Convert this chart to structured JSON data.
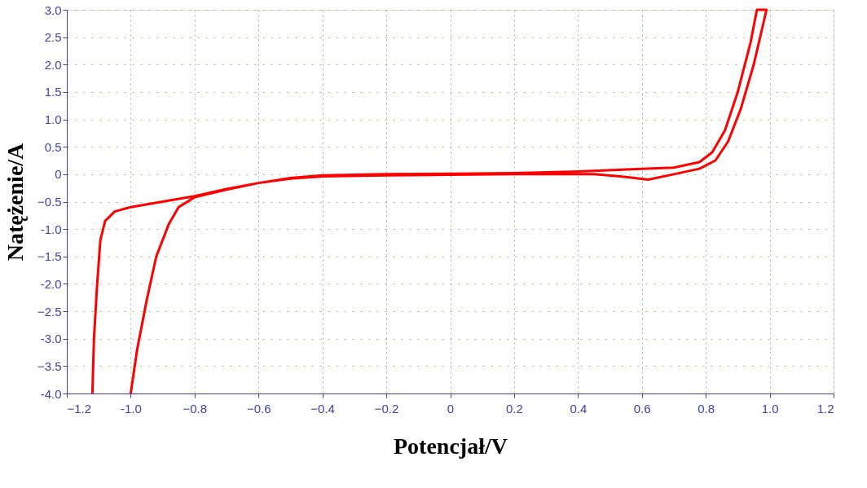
{
  "chart_data": {
    "type": "line",
    "xlabel": "Potencjał/V",
    "ylabel": "Natężenie/A",
    "xlim": [
      -1.2,
      1.2
    ],
    "ylim": [
      -4.0,
      3.0
    ],
    "xticks": [
      -1.2,
      {
        "value": -1,
        "label": "-1.0"
      },
      -0.8,
      -0.6,
      -0.4,
      -0.2,
      0,
      0.2,
      0.4,
      0.6,
      0.8,
      {
        "value": 1,
        "label": "1.0"
      },
      1.2
    ],
    "yticks": [
      {
        "value": -4,
        "label": "-4.0"
      },
      -3.5,
      {
        "value": -3,
        "label": "-3.0"
      },
      -2.5,
      {
        "value": -2,
        "label": "-2.0"
      },
      -1.5,
      {
        "value": -1,
        "label": "-1.0"
      },
      -0.5,
      0,
      0.5,
      {
        "value": 1,
        "label": "1.0"
      },
      1.5,
      {
        "value": 2,
        "label": "2.0"
      },
      2.5,
      {
        "value": 3,
        "label": "3.0"
      }
    ],
    "grid": true,
    "legend": false,
    "marker": "none",
    "line_style": "solid",
    "series": [
      {
        "color": "#ff0000",
        "x": [
          -1.12,
          -1.115,
          -1.105,
          -1.095,
          -1.08,
          -1.05,
          -1.0,
          -0.9,
          -0.8,
          -0.7,
          -0.6,
          -0.5,
          -0.4,
          -0.2,
          0,
          0.2,
          0.4,
          0.6,
          0.7,
          0.78,
          0.82,
          0.86,
          0.9,
          0.94,
          0.96,
          0.99,
          0.95,
          0.91,
          0.87,
          0.83,
          0.78,
          0.7,
          0.62,
          0.55,
          0.45,
          0.2,
          0,
          -0.2,
          -0.4,
          -0.5,
          -0.6,
          -0.7,
          -0.8,
          -0.85,
          -0.88,
          -0.92,
          -0.95,
          -0.98,
          -1.0
        ],
        "values": [
          -4.0,
          -3.0,
          -2.0,
          -1.2,
          -0.85,
          -0.68,
          -0.6,
          -0.5,
          -0.4,
          -0.27,
          -0.16,
          -0.07,
          -0.02,
          0.0,
          0.01,
          0.02,
          0.05,
          0.1,
          0.12,
          0.22,
          0.4,
          0.8,
          1.5,
          2.4,
          3.0,
          3.0,
          2.0,
          1.2,
          0.6,
          0.25,
          0.1,
          0.0,
          -0.1,
          -0.05,
          0.0,
          0.0,
          -0.01,
          -0.02,
          -0.04,
          -0.08,
          -0.16,
          -0.28,
          -0.42,
          -0.6,
          -0.9,
          -1.5,
          -2.3,
          -3.2,
          -4.0
        ]
      }
    ]
  }
}
